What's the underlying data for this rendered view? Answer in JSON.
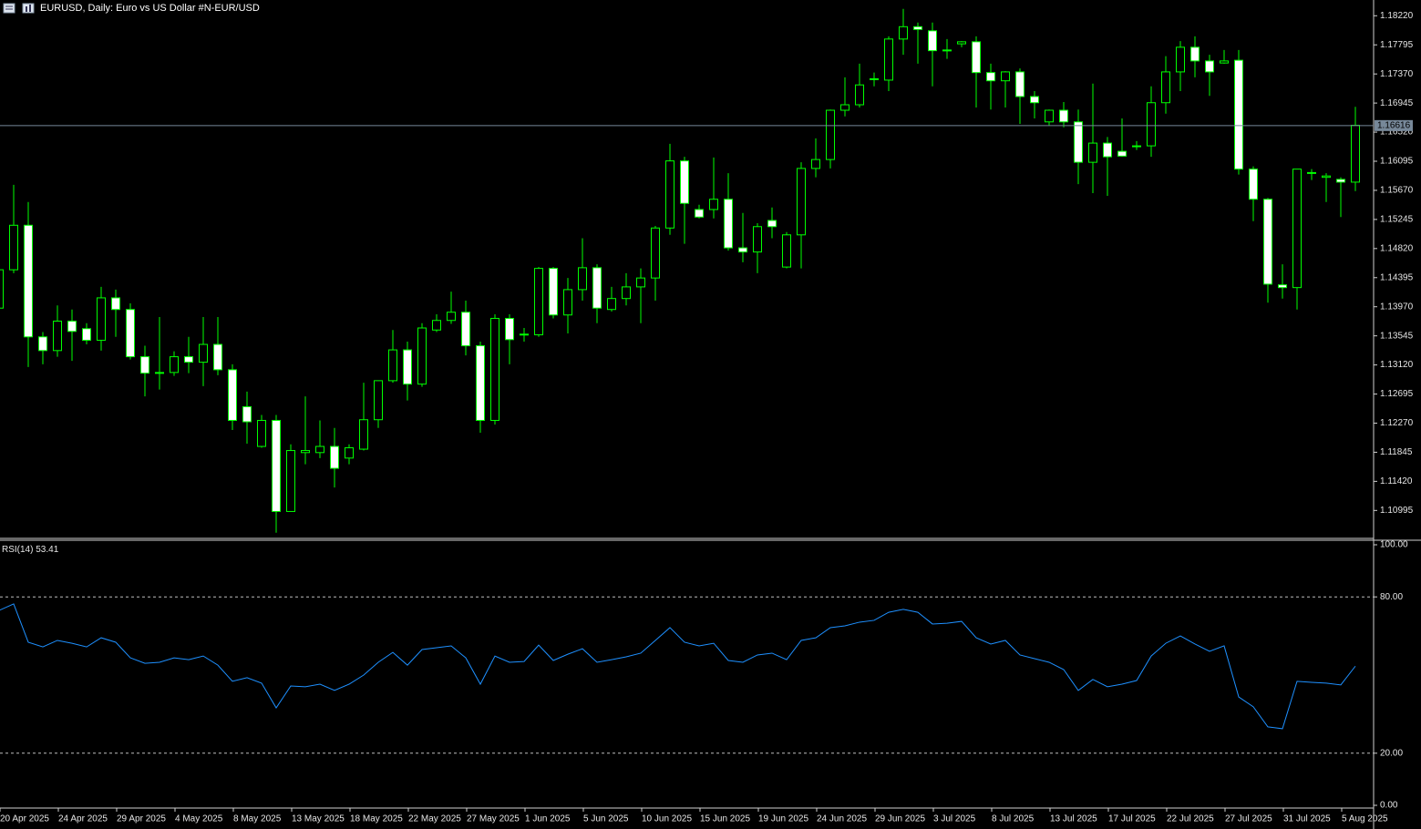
{
  "chart_data": {
    "type": "candlestick",
    "title": "EURUSD, Daily:  Euro vs US Dollar #N-EUR/USD",
    "up_color": "#00ff00",
    "down_fill": "#ffffff",
    "up_fill": "#000000",
    "open": [
      1.1395,
      1.1451,
      1.1516,
      1.1353,
      1.1333,
      1.1376,
      1.1365,
      1.1348,
      1.141,
      1.1393,
      1.1324,
      1.13,
      1.1301,
      1.1324,
      1.1316,
      1.1342,
      1.1305,
      1.1251,
      1.1193,
      1.1231,
      1.1098,
      1.1184,
      1.1184,
      1.1193,
      1.1176,
      1.1189,
      1.1232,
      1.1289,
      1.1334,
      1.1284,
      1.1363,
      1.1377,
      1.1389,
      1.134,
      1.1231,
      1.138,
      1.1356,
      1.1356,
      1.1453,
      1.1385,
      1.1422,
      1.1454,
      1.1393,
      1.1409,
      1.1426,
      1.1439,
      1.1512,
      1.161,
      1.1539,
      1.1539,
      1.1554,
      1.1483,
      1.1477,
      1.1523,
      1.1455,
      1.1502,
      1.1599,
      1.1612,
      1.1684,
      1.1692,
      1.1729,
      1.1728,
      1.1788,
      1.1806,
      1.18,
      1.1772,
      1.1781,
      1.1784,
      1.1739,
      1.1727,
      1.174,
      1.1704,
      1.1667,
      1.1684,
      1.1667,
      1.1608,
      1.1636,
      1.1624,
      1.1631,
      1.1632,
      1.1695,
      1.174,
      1.1776,
      1.1756,
      1.1753,
      1.1757,
      1.1598,
      1.1554,
      1.1429,
      1.1425,
      1.1592,
      1.1586,
      1.1583,
      1.1579
    ],
    "high": [
      1.1459,
      1.1575,
      1.155,
      1.136,
      1.1399,
      1.1393,
      1.1373,
      1.1426,
      1.1422,
      1.1402,
      1.134,
      1.1382,
      1.1332,
      1.1353,
      1.1382,
      1.1382,
      1.1313,
      1.1273,
      1.1239,
      1.1239,
      1.1196,
      1.1266,
      1.1231,
      1.122,
      1.1196,
      1.1286,
      1.1289,
      1.1363,
      1.1346,
      1.1373,
      1.1386,
      1.1419,
      1.1406,
      1.1346,
      1.1386,
      1.1386,
      1.1366,
      1.1455,
      1.1455,
      1.1439,
      1.1497,
      1.1459,
      1.1426,
      1.1446,
      1.1453,
      1.1515,
      1.1635,
      1.1616,
      1.1546,
      1.1615,
      1.1592,
      1.1534,
      1.1519,
      1.1542,
      1.1506,
      1.1608,
      1.1643,
      1.1685,
      1.1732,
      1.1752,
      1.1739,
      1.1792,
      1.1832,
      1.1812,
      1.1812,
      1.1788,
      1.1785,
      1.1792,
      1.1752,
      1.1741,
      1.1745,
      1.1712,
      1.1685,
      1.1696,
      1.1685,
      1.1723,
      1.1645,
      1.1672,
      1.1639,
      1.1719,
      1.1763,
      1.1785,
      1.1792,
      1.1765,
      1.1772,
      1.1772,
      1.1602,
      1.1556,
      1.1459,
      1.1598,
      1.1598,
      1.1592,
      1.1586,
      1.1689
    ],
    "low": [
      1.1393,
      1.1446,
      1.1309,
      1.1313,
      1.1324,
      1.1318,
      1.1342,
      1.1333,
      1.1353,
      1.132,
      1.1266,
      1.1276,
      1.1296,
      1.13,
      1.1281,
      1.1297,
      1.1217,
      1.1197,
      1.1191,
      1.1067,
      1.1098,
      1.1167,
      1.1176,
      1.1133,
      1.1167,
      1.1187,
      1.122,
      1.1286,
      1.126,
      1.128,
      1.136,
      1.1372,
      1.1326,
      1.1213,
      1.1225,
      1.1313,
      1.1346,
      1.1353,
      1.138,
      1.1358,
      1.1406,
      1.1373,
      1.139,
      1.1399,
      1.1373,
      1.1406,
      1.1502,
      1.1489,
      1.1526,
      1.1526,
      1.1479,
      1.1462,
      1.1446,
      1.1497,
      1.1453,
      1.1453,
      1.1586,
      1.1599,
      1.1675,
      1.1688,
      1.1719,
      1.1712,
      1.1765,
      1.1752,
      1.1719,
      1.1759,
      1.1776,
      1.1688,
      1.1685,
      1.1688,
      1.1664,
      1.1672,
      1.1662,
      1.1659,
      1.1576,
      1.1563,
      1.1559,
      1.1616,
      1.1626,
      1.1616,
      1.1679,
      1.1712,
      1.1732,
      1.1705,
      1.1752,
      1.159,
      1.1522,
      1.1403,
      1.1409,
      1.1393,
      1.1582,
      1.155,
      1.1528,
      1.1566
    ],
    "close": [
      1.1451,
      1.1516,
      1.1353,
      1.1333,
      1.1376,
      1.1361,
      1.1348,
      1.141,
      1.1393,
      1.1324,
      1.13,
      1.1301,
      1.1324,
      1.1316,
      1.1342,
      1.1305,
      1.1231,
      1.1229,
      1.1231,
      1.1098,
      1.1187,
      1.1187,
      1.1193,
      1.1161,
      1.1191,
      1.1232,
      1.1289,
      1.1334,
      1.1284,
      1.1366,
      1.1377,
      1.1389,
      1.134,
      1.1231,
      1.138,
      1.1349,
      1.1357,
      1.1453,
      1.1385,
      1.1422,
      1.1454,
      1.1395,
      1.1409,
      1.1426,
      1.1439,
      1.1512,
      1.161,
      1.1548,
      1.1528,
      1.1554,
      1.1483,
      1.1477,
      1.1514,
      1.1514,
      1.1502,
      1.1599,
      1.1612,
      1.1684,
      1.1692,
      1.1721,
      1.173,
      1.1788,
      1.1806,
      1.1802,
      1.1771,
      1.1771,
      1.1784,
      1.1739,
      1.1727,
      1.174,
      1.1704,
      1.1695,
      1.1684,
      1.1667,
      1.1608,
      1.1636,
      1.1616,
      1.1617,
      1.1632,
      1.1695,
      1.174,
      1.1776,
      1.1756,
      1.174,
      1.1756,
      1.1598,
      1.1554,
      1.143,
      1.1425,
      1.1598,
      1.1593,
      1.1588,
      1.1579,
      1.1662
    ],
    "current_price": {
      "value": 1.16616,
      "label": "1.16616"
    },
    "current_price_color": "#778899",
    "ylim": [
      1.106,
      1.1845
    ],
    "yticks": [
      {
        "value": 1.1822,
        "label": "1.18220"
      },
      {
        "value": 1.17795,
        "label": "1.17795"
      },
      {
        "value": 1.1737,
        "label": "1.17370"
      },
      {
        "value": 1.16945,
        "label": "1.16945"
      },
      {
        "value": 1.1652,
        "label": "1.16520"
      },
      {
        "value": 1.16095,
        "label": "1.16095"
      },
      {
        "value": 1.1567,
        "label": "1.15670"
      },
      {
        "value": 1.15245,
        "label": "1.15245"
      },
      {
        "value": 1.1482,
        "label": "1.14820"
      },
      {
        "value": 1.14395,
        "label": "1.14395"
      },
      {
        "value": 1.1397,
        "label": "1.13970"
      },
      {
        "value": 1.13545,
        "label": "1.13545"
      },
      {
        "value": 1.1312,
        "label": "1.13120"
      },
      {
        "value": 1.12695,
        "label": "1.12695"
      },
      {
        "value": 1.1227,
        "label": "1.12270"
      },
      {
        "value": 1.11845,
        "label": "1.11845"
      },
      {
        "value": 1.1142,
        "label": "1.11420"
      },
      {
        "value": 1.10995,
        "label": "1.10995"
      }
    ],
    "x_labels": [
      "20 Apr 2025",
      "24 Apr 2025",
      "29 Apr 2025",
      "4 May 2025",
      "8 May 2025",
      "13 May 2025",
      "18 May 2025",
      "22 May 2025",
      "27 May 2025",
      "1 Jun 2025",
      "5 Jun 2025",
      "10 Jun 2025",
      "15 Jun 2025",
      "19 Jun 2025",
      "24 Jun 2025",
      "29 Jun 2025",
      "3 Jul 2025",
      "8 Jul 2025",
      "13 Jul 2025",
      "17 Jul 2025",
      "22 Jul 2025",
      "27 Jul 2025",
      "31 Jul 2025",
      "5 Aug 2025"
    ],
    "rsi": {
      "name": "RSI(14)",
      "color": "#1e90ff",
      "values": [
        74.8,
        77.3,
        62.6,
        60.8,
        63.3,
        62.2,
        60.8,
        64.3,
        62.6,
        56.6,
        54.5,
        54.9,
        56.6,
        55.9,
        57.3,
        53.8,
        47.6,
        49.0,
        46.9,
        37.4,
        45.8,
        45.5,
        46.5,
        44.1,
        46.5,
        50.0,
        54.9,
        58.7,
        53.8,
        59.8,
        60.5,
        61.2,
        56.6,
        46.5,
        57.3,
        54.9,
        55.2,
        61.5,
        55.6,
        58.0,
        60.1,
        54.9,
        55.9,
        57.0,
        58.4,
        63.3,
        68.2,
        62.6,
        61.2,
        62.2,
        55.6,
        54.9,
        57.7,
        58.4,
        55.9,
        63.3,
        64.3,
        68.2,
        68.9,
        70.3,
        71.0,
        74.1,
        75.2,
        74.1,
        69.6,
        69.9,
        70.6,
        64.3,
        61.9,
        63.3,
        57.7,
        56.3,
        54.9,
        52.1,
        44.1,
        48.3,
        45.5,
        46.5,
        47.9,
        57.3,
        62.2,
        65.0,
        61.9,
        59.1,
        61.2,
        41.6,
        37.8,
        30.1,
        29.4,
        47.6,
        47.2,
        46.9,
        46.2,
        53.41
      ],
      "ylim": [
        0,
        100
      ],
      "yticks": [
        {
          "value": 100,
          "label": "100.00"
        },
        {
          "value": 80,
          "label": "80.00"
        },
        {
          "value": 20,
          "label": "20.00"
        },
        {
          "value": 0,
          "label": "0.00"
        }
      ]
    }
  }
}
